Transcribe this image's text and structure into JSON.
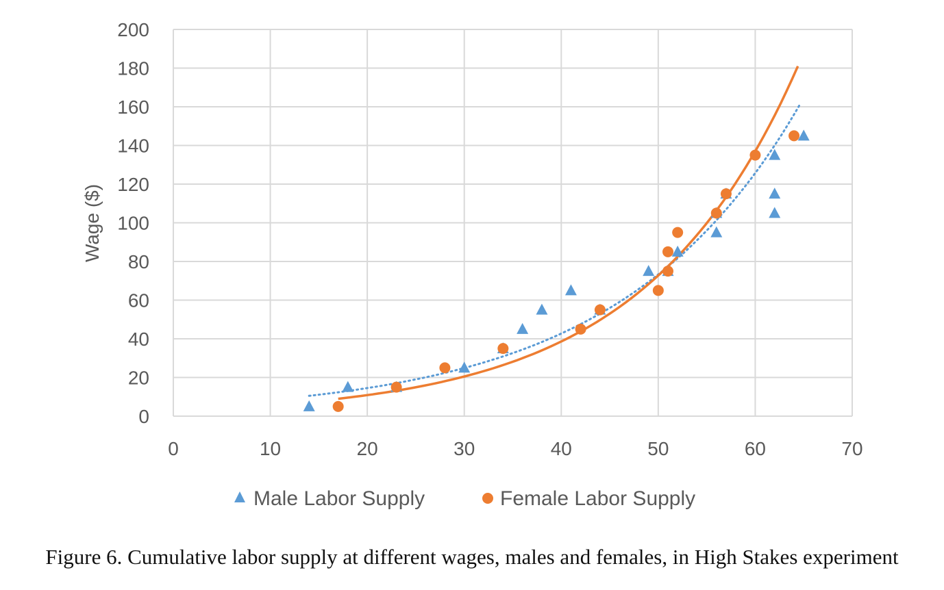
{
  "chart_data": {
    "type": "scatter",
    "title": "",
    "xlabel": "",
    "ylabel": "Wage ($)",
    "xlim": [
      0,
      70
    ],
    "ylim": [
      0,
      200
    ],
    "xticks": [
      0,
      10,
      20,
      30,
      40,
      50,
      60,
      70
    ],
    "yticks": [
      0,
      20,
      40,
      60,
      80,
      100,
      120,
      140,
      160,
      180,
      200
    ],
    "grid": true,
    "legend_position": "bottom",
    "series": [
      {
        "name": "Male Labor Supply",
        "marker": "triangle",
        "color": "#5b9bd5",
        "points": [
          [
            14,
            5
          ],
          [
            18,
            15
          ],
          [
            23,
            15
          ],
          [
            30,
            25
          ],
          [
            34,
            35
          ],
          [
            36,
            45
          ],
          [
            38,
            55
          ],
          [
            41,
            65
          ],
          [
            44,
            55
          ],
          [
            49,
            75
          ],
          [
            51,
            75
          ],
          [
            52,
            85
          ],
          [
            56,
            95
          ],
          [
            56,
            105
          ],
          [
            57,
            115
          ],
          [
            62,
            105
          ],
          [
            62,
            115
          ],
          [
            62,
            135
          ],
          [
            65,
            145
          ]
        ],
        "trendline": {
          "style": "dotted",
          "x_range": [
            14,
            64.7
          ],
          "y_range": [
            10.5,
            162
          ]
        }
      },
      {
        "name": "Female Labor Supply",
        "marker": "circle",
        "color": "#ed7d31",
        "points": [
          [
            17,
            5
          ],
          [
            23,
            15
          ],
          [
            28,
            25
          ],
          [
            34,
            35
          ],
          [
            42,
            45
          ],
          [
            44,
            55
          ],
          [
            50,
            65
          ],
          [
            51,
            75
          ],
          [
            51,
            85
          ],
          [
            52,
            95
          ],
          [
            56,
            105
          ],
          [
            57,
            115
          ],
          [
            60,
            135
          ],
          [
            64,
            145
          ]
        ],
        "trendline": {
          "style": "solid",
          "x_range": [
            17,
            64.4
          ],
          "y_range": [
            9,
            181
          ]
        }
      }
    ]
  },
  "caption": "Figure 6. Cumulative labor supply at different wages, males and females, in High Stakes experiment"
}
